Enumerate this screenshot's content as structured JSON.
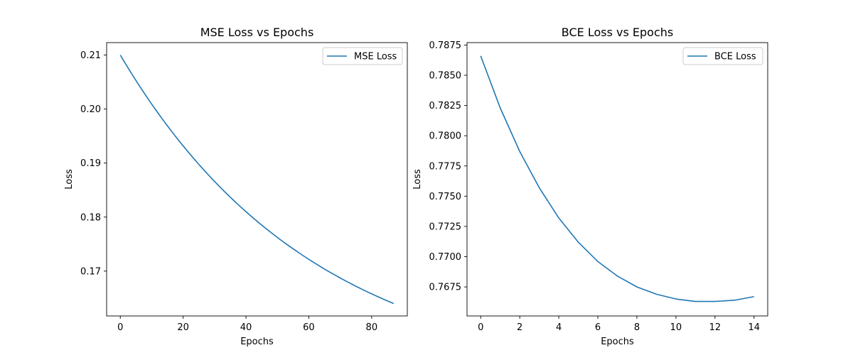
{
  "chart_data": [
    {
      "type": "line",
      "title": "MSE Loss vs Epochs",
      "xlabel": "Epochs",
      "ylabel": "Loss",
      "xlim": [
        -4.35,
        91.35
      ],
      "ylim": [
        0.1617,
        0.2123
      ],
      "xticks": [
        0,
        20,
        40,
        60,
        80
      ],
      "yticks": [
        0.17,
        0.18,
        0.19,
        0.2,
        0.21
      ],
      "ytick_labels": [
        "0.17",
        "0.18",
        "0.19",
        "0.20",
        "0.21"
      ],
      "legend": "top-right",
      "grid": false,
      "series": [
        {
          "name": "MSE Loss",
          "color": "#1f77b4",
          "x": [
            0,
            5,
            10,
            15,
            20,
            25,
            30,
            35,
            40,
            45,
            50,
            55,
            60,
            65,
            70,
            75,
            80,
            87
          ],
          "y": [
            0.21,
            0.2047,
            0.1997,
            0.1952,
            0.191,
            0.1871,
            0.1835,
            0.1802,
            0.1771,
            0.1743,
            0.1717,
            0.1693,
            0.1671,
            0.17,
            0.1688,
            0.167,
            0.1656,
            0.164
          ]
        }
      ]
    },
    {
      "type": "line",
      "title": "BCE Loss vs Epochs",
      "xlabel": "Epochs",
      "ylabel": "Loss",
      "xlim": [
        -0.7,
        14.7
      ],
      "ylim": [
        0.7651,
        0.7877
      ],
      "xticks": [
        0,
        2,
        4,
        6,
        8,
        10,
        12,
        14
      ],
      "yticks": [
        0.7675,
        0.77,
        0.7725,
        0.775,
        0.7775,
        0.78,
        0.7825,
        0.785,
        0.7875
      ],
      "ytick_labels": [
        "0.7675",
        "0.7700",
        "0.7725",
        "0.7750",
        "0.7775",
        "0.7800",
        "0.7825",
        "0.7850",
        "0.7875"
      ],
      "legend": "top-right",
      "grid": false,
      "series": [
        {
          "name": "BCE Loss",
          "color": "#1f77b4",
          "x": [
            0,
            1,
            2,
            3,
            4,
            5,
            6,
            7,
            8,
            9,
            10,
            11,
            12,
            13,
            14
          ],
          "y": [
            0.7866,
            0.7823,
            0.7787,
            0.7757,
            0.7732,
            0.7712,
            0.7696,
            0.7684,
            0.7675,
            0.7669,
            0.7665,
            0.7663,
            0.7663,
            0.7664,
            0.7667
          ]
        }
      ]
    }
  ]
}
